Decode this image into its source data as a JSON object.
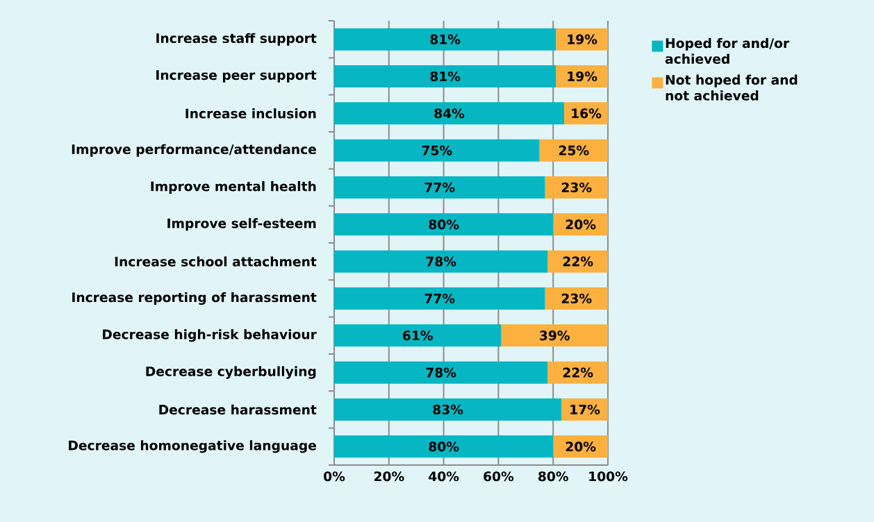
{
  "chart_data": {
    "type": "bar",
    "orientation": "horizontal",
    "stacked": true,
    "categories": [
      "Increase staff support",
      "Increase peer support",
      "Increase inclusion",
      "Improve performance/attendance",
      "Improve mental health",
      "Improve self-esteem",
      "Increase school attachment",
      "Increase reporting of harassment",
      "Decrease high-risk behaviour",
      "Decrease cyberbullying",
      "Decrease harassment",
      "Decrease homonegative language"
    ],
    "series": [
      {
        "name": "Hoped for and/or achieved",
        "color": "#06b6c3",
        "values": [
          81,
          81,
          84,
          75,
          77,
          80,
          78,
          77,
          61,
          78,
          83,
          80
        ],
        "value_labels": [
          "81%",
          "81%",
          "84%",
          "75%",
          "77%",
          "80%",
          "78%",
          "77%",
          "61%",
          "78%",
          "83%",
          "80%"
        ]
      },
      {
        "name": "Not hoped for and not achieved",
        "color": "#fbb040",
        "values": [
          19,
          19,
          16,
          25,
          23,
          20,
          22,
          23,
          39,
          22,
          17,
          20
        ],
        "value_labels": [
          "19%",
          "19%",
          "16%",
          "25%",
          "23%",
          "20%",
          "22%",
          "23%",
          "39%",
          "22%",
          "17%",
          "20%"
        ]
      }
    ],
    "xlim": [
      0,
      100
    ],
    "xticks": [
      {
        "value": 0,
        "label": "0%"
      },
      {
        "value": 20,
        "label": "20%"
      },
      {
        "value": 40,
        "label": "40%"
      },
      {
        "value": 60,
        "label": "60%"
      },
      {
        "value": 80,
        "label": "80%"
      },
      {
        "value": 100,
        "label": "100%"
      }
    ],
    "grid": "x",
    "legend": "top right"
  }
}
